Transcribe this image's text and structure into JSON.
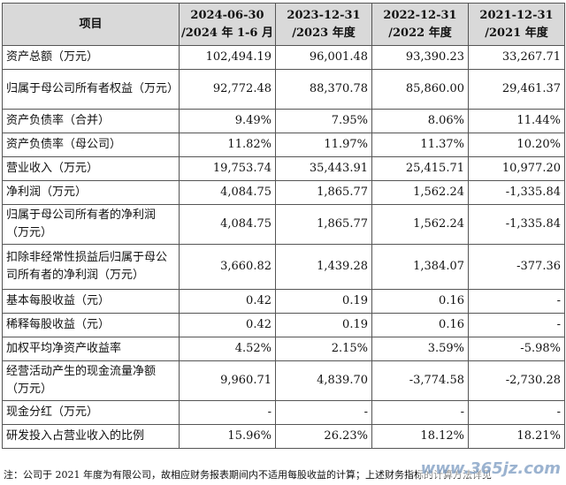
{
  "table": {
    "headers": [
      {
        "line1": "项目",
        "line2": ""
      },
      {
        "line1": "2024-06-30",
        "line2": "/2024 年 1-6 月"
      },
      {
        "line1": "2023-12-31",
        "line2": "/2023 年度"
      },
      {
        "line1": "2022-12-31",
        "line2": "/2022 年度"
      },
      {
        "line1": "2021-12-31",
        "line2": "/2021 年度"
      }
    ],
    "rows": [
      {
        "label": "资产总额（万元）",
        "values": [
          "102,494.19",
          "96,001.48",
          "93,390.23",
          "33,267.71"
        ]
      },
      {
        "label": "归属于母公司所有者权益（万元）",
        "values": [
          "92,772.48",
          "88,370.78",
          "85,860.00",
          "29,461.37"
        ]
      },
      {
        "label": "资产负债率（合并）",
        "values": [
          "9.49%",
          "7.95%",
          "8.06%",
          "11.44%"
        ]
      },
      {
        "label": "资产负债率（母公司）",
        "values": [
          "11.82%",
          "11.97%",
          "11.37%",
          "10.20%"
        ]
      },
      {
        "label": "营业收入（万元）",
        "values": [
          "19,753.74",
          "35,443.91",
          "25,415.71",
          "10,977.20"
        ]
      },
      {
        "label": "净利润（万元）",
        "values": [
          "4,084.75",
          "1,865.77",
          "1,562.24",
          "-1,335.84"
        ]
      },
      {
        "label": "归属于母公司所有者的净利润（万元）",
        "values": [
          "4,084.75",
          "1,865.77",
          "1,562.24",
          "-1,335.84"
        ]
      },
      {
        "label": "扣除非经常性损益后归属于母公司所有者的净利润（万元）",
        "values": [
          "3,660.82",
          "1,439.28",
          "1,384.07",
          "-377.36"
        ]
      },
      {
        "label": "基本每股收益（元）",
        "values": [
          "0.42",
          "0.19",
          "0.16",
          "-"
        ]
      },
      {
        "label": "稀释每股收益（元）",
        "values": [
          "0.42",
          "0.19",
          "0.16",
          "-"
        ]
      },
      {
        "label": "加权平均净资产收益率",
        "values": [
          "4.52%",
          "2.15%",
          "3.59%",
          "-5.98%"
        ]
      },
      {
        "label": "经营活动产生的现金流量净额（万元）",
        "values": [
          "9,960.71",
          "4,839.70",
          "-3,774.58",
          "-2,730.28"
        ]
      },
      {
        "label": "现金分红（万元）",
        "values": [
          "-",
          "-",
          "-",
          "-"
        ]
      },
      {
        "label": "研发投入占营业收入的比例",
        "values": [
          "15.96%",
          "26.23%",
          "18.12%",
          "18.21%"
        ]
      }
    ]
  },
  "footnote": "注：公司于 2021 年度为有限公司，故相应财务报表期间内不适用每股收益的计算；上述财务指标的计算方法详见",
  "watermark": "www.365jz.com"
}
